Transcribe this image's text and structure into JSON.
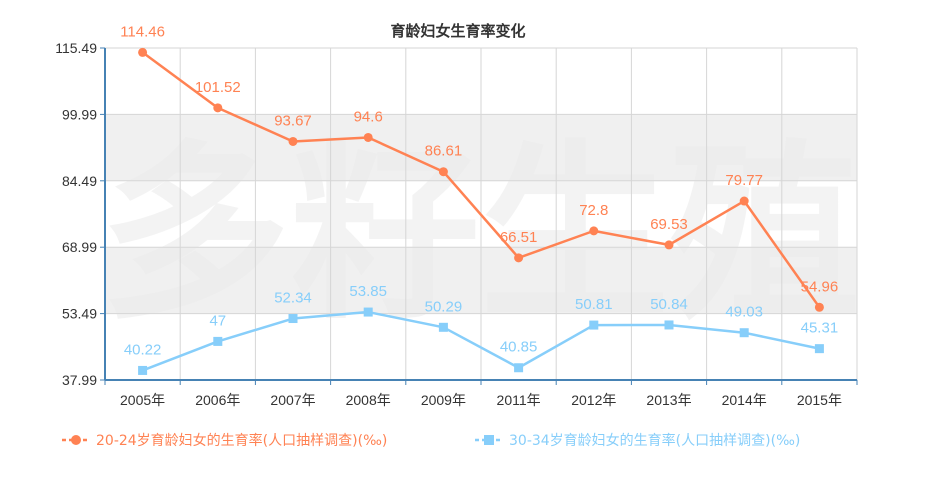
{
  "chart_data": {
    "type": "line",
    "title": "育龄妇女生育率变化",
    "watermark": "多籽生殖",
    "categories": [
      "2005年",
      "2006年",
      "2007年",
      "2008年",
      "2009年",
      "2011年",
      "2012年",
      "2013年",
      "2014年",
      "2015年"
    ],
    "y_ticks": [
      "37.99",
      "53.49",
      "68.99",
      "84.49",
      "99.99",
      "115.49"
    ],
    "ylim": [
      37.99,
      115.49
    ],
    "grid": true,
    "legend_position": "bottom",
    "series": [
      {
        "name": "20-24岁育龄妇女的生育率(人口抽样调查)(‰)",
        "color": "#ff8253",
        "marker": "circle",
        "values": [
          114.46,
          101.52,
          93.67,
          94.6,
          86.61,
          66.51,
          72.8,
          69.53,
          79.77,
          54.96
        ],
        "labels": [
          "114.46",
          "101.52",
          "93.67",
          "94.6",
          "86.61",
          "66.51",
          "72.8",
          "69.53",
          "79.77",
          "54.96"
        ]
      },
      {
        "name": "30-34岁育龄妇女的生育率(人口抽样调查)(‰)",
        "color": "#87cefa",
        "marker": "square",
        "values": [
          40.22,
          47,
          52.34,
          53.85,
          50.29,
          40.85,
          50.81,
          50.84,
          49.03,
          45.31
        ],
        "labels": [
          "40.22",
          "47",
          "52.34",
          "53.85",
          "50.29",
          "40.85",
          "50.81",
          "50.84",
          "49.03",
          "45.31"
        ]
      }
    ]
  }
}
